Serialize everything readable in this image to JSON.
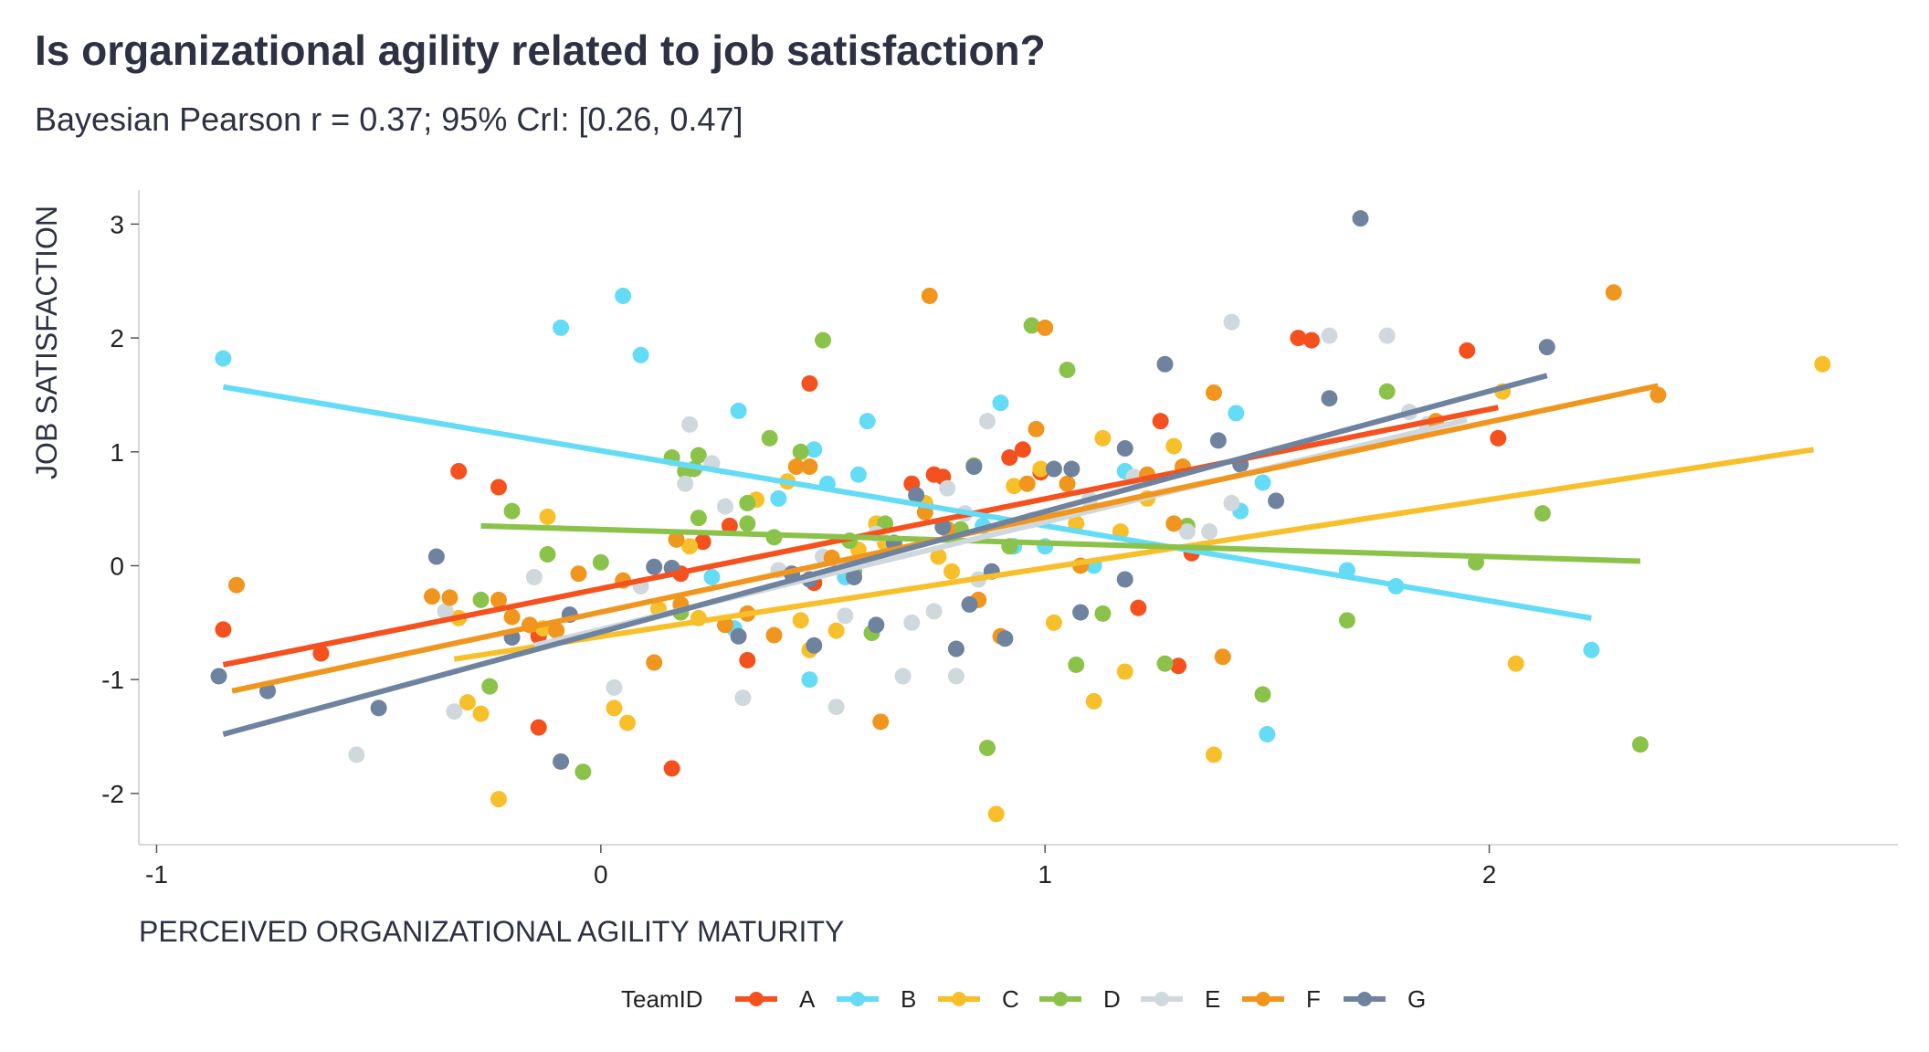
{
  "chart_data": {
    "type": "scatter",
    "title": "Is organizational agility related to job satisfaction?",
    "subtitle": "Bayesian Pearson r = 0.37; 95% CrI: [0.26, 0.47]",
    "xlabel": "PERCEIVED ORGANIZATIONAL AGILITY MATURITY",
    "ylabel": "JOB SATISFACTION",
    "xlim": [
      -1.04,
      2.92
    ],
    "ylim": [
      -2.45,
      3.3
    ],
    "xticks": [
      -1,
      0,
      1,
      2
    ],
    "yticks": [
      -2,
      -1,
      0,
      1,
      2,
      3
    ],
    "grid": false,
    "legend": {
      "title": "TeamID",
      "position": "bottom",
      "entries": [
        "A",
        "B",
        "C",
        "D",
        "E",
        "F",
        "G"
      ]
    },
    "series": [
      {
        "name": "A",
        "color": "#f4511e",
        "fit": [
          [
            -0.85,
            -0.87
          ],
          [
            2.02,
            1.39
          ]
        ],
        "points": [
          [
            -0.85,
            -0.56
          ],
          [
            -0.32,
            0.83
          ],
          [
            -0.63,
            -0.77
          ],
          [
            -0.23,
            0.69
          ],
          [
            -0.14,
            -0.6
          ],
          [
            -0.14,
            -0.62
          ],
          [
            -0.14,
            -1.42
          ],
          [
            0.16,
            -1.78
          ],
          [
            0.18,
            -0.07
          ],
          [
            0.23,
            0.21
          ],
          [
            0.29,
            0.35
          ],
          [
            0.33,
            -0.83
          ],
          [
            0.47,
            1.6
          ],
          [
            0.48,
            -0.15
          ],
          [
            0.7,
            0.72
          ],
          [
            0.75,
            0.8
          ],
          [
            0.77,
            0.78
          ],
          [
            0.92,
            0.95
          ],
          [
            0.95,
            1.02
          ],
          [
            0.99,
            0.82
          ],
          [
            1.21,
            -0.37
          ],
          [
            1.26,
            1.27
          ],
          [
            1.3,
            -0.88
          ],
          [
            1.33,
            0.11
          ],
          [
            1.57,
            2.0
          ],
          [
            1.6,
            1.98
          ],
          [
            1.95,
            1.89
          ],
          [
            2.02,
            1.12
          ]
        ]
      },
      {
        "name": "B",
        "color": "#64dcf5",
        "fit": [
          [
            -0.85,
            1.57
          ],
          [
            2.23,
            -0.46
          ]
        ],
        "points": [
          [
            -0.85,
            1.82
          ],
          [
            -0.09,
            2.09
          ],
          [
            0.05,
            2.37
          ],
          [
            0.09,
            1.85
          ],
          [
            0.25,
            -0.1
          ],
          [
            0.3,
            -0.55
          ],
          [
            0.31,
            1.36
          ],
          [
            0.4,
            0.59
          ],
          [
            0.47,
            -1.0
          ],
          [
            0.48,
            1.02
          ],
          [
            0.51,
            0.72
          ],
          [
            0.55,
            -0.1
          ],
          [
            0.58,
            0.8
          ],
          [
            0.6,
            1.27
          ],
          [
            0.86,
            0.35
          ],
          [
            0.9,
            1.43
          ],
          [
            0.93,
            0.17
          ],
          [
            1.0,
            0.17
          ],
          [
            1.11,
            0.0
          ],
          [
            1.18,
            0.83
          ],
          [
            1.43,
            1.34
          ],
          [
            1.44,
            0.48
          ],
          [
            1.49,
            0.73
          ],
          [
            1.5,
            -1.48
          ],
          [
            1.68,
            -0.04
          ],
          [
            1.79,
            -0.18
          ],
          [
            2.23,
            -0.74
          ]
        ]
      },
      {
        "name": "C",
        "color": "#f7c02b",
        "fit": [
          [
            -0.33,
            -0.82
          ],
          [
            2.73,
            1.02
          ]
        ],
        "points": [
          [
            -0.23,
            -2.05
          ],
          [
            -0.32,
            -0.46
          ],
          [
            -0.3,
            -1.2
          ],
          [
            -0.27,
            -1.3
          ],
          [
            -0.12,
            0.43
          ],
          [
            -0.13,
            -0.55
          ],
          [
            0.03,
            -1.25
          ],
          [
            0.06,
            -1.38
          ],
          [
            0.13,
            -0.38
          ],
          [
            0.2,
            0.17
          ],
          [
            0.22,
            -0.46
          ],
          [
            0.35,
            0.58
          ],
          [
            0.42,
            0.74
          ],
          [
            0.45,
            -0.48
          ],
          [
            0.47,
            -0.74
          ],
          [
            0.53,
            -0.57
          ],
          [
            0.58,
            0.14
          ],
          [
            0.62,
            0.37
          ],
          [
            0.64,
            0.2
          ],
          [
            0.73,
            0.55
          ],
          [
            0.76,
            0.08
          ],
          [
            0.79,
            -0.05
          ],
          [
            0.89,
            -2.18
          ],
          [
            0.93,
            0.7
          ],
          [
            0.99,
            0.85
          ],
          [
            1.02,
            -0.5
          ],
          [
            1.07,
            0.37
          ],
          [
            1.11,
            -1.19
          ],
          [
            1.13,
            1.12
          ],
          [
            1.17,
            0.3
          ],
          [
            1.18,
            -0.93
          ],
          [
            1.23,
            0.59
          ],
          [
            1.29,
            1.05
          ],
          [
            1.38,
            -1.66
          ],
          [
            2.03,
            1.53
          ],
          [
            2.06,
            -0.86
          ],
          [
            2.75,
            1.77
          ]
        ]
      },
      {
        "name": "D",
        "color": "#8bc34a",
        "fit": [
          [
            -0.27,
            0.35
          ],
          [
            2.34,
            0.04
          ]
        ],
        "points": [
          [
            -0.27,
            -0.3
          ],
          [
            -0.25,
            -1.06
          ],
          [
            -0.2,
            0.48
          ],
          [
            -0.12,
            0.1
          ],
          [
            -0.04,
            -1.81
          ],
          [
            0.0,
            0.03
          ],
          [
            0.16,
            0.95
          ],
          [
            0.18,
            -0.41
          ],
          [
            0.19,
            0.83
          ],
          [
            0.21,
            0.85
          ],
          [
            0.22,
            0.42
          ],
          [
            0.22,
            0.97
          ],
          [
            0.33,
            0.55
          ],
          [
            0.33,
            0.37
          ],
          [
            0.38,
            1.12
          ],
          [
            0.39,
            0.25
          ],
          [
            0.45,
            1.0
          ],
          [
            0.5,
            1.98
          ],
          [
            0.56,
            0.22
          ],
          [
            0.57,
            -0.05
          ],
          [
            0.61,
            -0.59
          ],
          [
            0.64,
            0.37
          ],
          [
            0.81,
            0.32
          ],
          [
            0.84,
            0.88
          ],
          [
            0.87,
            -1.6
          ],
          [
            0.92,
            0.17
          ],
          [
            0.97,
            2.11
          ],
          [
            1.05,
            1.72
          ],
          [
            1.07,
            -0.87
          ],
          [
            1.13,
            -0.42
          ],
          [
            1.27,
            -0.86
          ],
          [
            1.32,
            0.35
          ],
          [
            1.49,
            -1.13
          ],
          [
            1.68,
            -0.48
          ],
          [
            1.77,
            1.53
          ],
          [
            1.97,
            0.03
          ],
          [
            2.12,
            0.46
          ],
          [
            2.34,
            -1.57
          ]
        ]
      },
      {
        "name": "E",
        "color": "#cfd8dc",
        "fit": [
          [
            -0.15,
            -0.7
          ],
          [
            1.95,
            1.28
          ]
        ],
        "points": [
          [
            -0.55,
            -1.66
          ],
          [
            -0.35,
            -0.4
          ],
          [
            -0.33,
            -1.28
          ],
          [
            -0.15,
            -0.1
          ],
          [
            0.03,
            -1.07
          ],
          [
            0.09,
            -0.18
          ],
          [
            0.19,
            0.72
          ],
          [
            0.2,
            1.24
          ],
          [
            0.25,
            0.9
          ],
          [
            0.28,
            0.52
          ],
          [
            0.32,
            -1.16
          ],
          [
            0.4,
            -0.04
          ],
          [
            0.5,
            0.08
          ],
          [
            0.53,
            -1.24
          ],
          [
            0.55,
            -0.44
          ],
          [
            0.62,
            0.28
          ],
          [
            0.68,
            -0.97
          ],
          [
            0.7,
            -0.5
          ],
          [
            0.75,
            -0.4
          ],
          [
            0.78,
            0.68
          ],
          [
            0.8,
            -0.97
          ],
          [
            0.82,
            0.46
          ],
          [
            0.85,
            -0.12
          ],
          [
            0.87,
            1.27
          ],
          [
            0.97,
            0.4
          ],
          [
            1.1,
            0.58
          ],
          [
            1.2,
            0.78
          ],
          [
            1.32,
            0.3
          ],
          [
            1.37,
            0.3
          ],
          [
            1.42,
            0.55
          ],
          [
            1.42,
            2.14
          ],
          [
            1.64,
            2.02
          ],
          [
            1.77,
            2.02
          ],
          [
            1.82,
            1.35
          ],
          [
            1.86,
            1.24
          ]
        ]
      },
      {
        "name": "F",
        "color": "#f0961e",
        "fit": [
          [
            -0.83,
            -1.1
          ],
          [
            2.38,
            1.58
          ]
        ],
        "points": [
          [
            -0.82,
            -0.17
          ],
          [
            -0.38,
            -0.27
          ],
          [
            -0.34,
            -0.28
          ],
          [
            -0.23,
            -0.3
          ],
          [
            -0.2,
            -0.45
          ],
          [
            -0.16,
            -0.52
          ],
          [
            -0.1,
            -0.57
          ],
          [
            -0.05,
            -0.07
          ],
          [
            0.05,
            -0.13
          ],
          [
            0.12,
            -0.85
          ],
          [
            0.17,
            0.23
          ],
          [
            0.18,
            -0.34
          ],
          [
            0.28,
            -0.52
          ],
          [
            0.33,
            -0.42
          ],
          [
            0.39,
            -0.61
          ],
          [
            0.44,
            0.87
          ],
          [
            0.47,
            0.87
          ],
          [
            0.52,
            0.07
          ],
          [
            0.63,
            -1.37
          ],
          [
            0.73,
            0.47
          ],
          [
            0.74,
            2.37
          ],
          [
            0.78,
            0.32
          ],
          [
            0.85,
            -0.3
          ],
          [
            0.9,
            -0.62
          ],
          [
            0.96,
            0.72
          ],
          [
            0.98,
            1.2
          ],
          [
            1.0,
            2.09
          ],
          [
            1.05,
            0.72
          ],
          [
            1.08,
            0.0
          ],
          [
            1.23,
            0.8
          ],
          [
            1.29,
            0.37
          ],
          [
            1.31,
            0.87
          ],
          [
            1.38,
            1.52
          ],
          [
            1.4,
            -0.8
          ],
          [
            1.88,
            1.27
          ],
          [
            2.28,
            2.4
          ],
          [
            2.38,
            1.5
          ]
        ]
      },
      {
        "name": "G",
        "color": "#6f829e",
        "fit": [
          [
            -0.85,
            -1.48
          ],
          [
            2.13,
            1.67
          ]
        ],
        "points": [
          [
            -0.86,
            -0.97
          ],
          [
            -0.75,
            -1.1
          ],
          [
            -0.5,
            -1.25
          ],
          [
            -0.37,
            0.08
          ],
          [
            -0.2,
            -0.63
          ],
          [
            -0.09,
            -1.72
          ],
          [
            -0.07,
            -0.43
          ],
          [
            0.12,
            -0.01
          ],
          [
            0.16,
            -0.02
          ],
          [
            0.31,
            -0.62
          ],
          [
            0.43,
            -0.07
          ],
          [
            0.47,
            -0.12
          ],
          [
            0.48,
            -0.7
          ],
          [
            0.57,
            -0.1
          ],
          [
            0.62,
            -0.52
          ],
          [
            0.66,
            0.2
          ],
          [
            0.71,
            0.62
          ],
          [
            0.77,
            0.34
          ],
          [
            0.8,
            -0.73
          ],
          [
            0.83,
            -0.34
          ],
          [
            0.84,
            0.87
          ],
          [
            0.88,
            -0.05
          ],
          [
            0.91,
            -0.64
          ],
          [
            1.02,
            0.85
          ],
          [
            1.06,
            0.85
          ],
          [
            1.08,
            -0.41
          ],
          [
            1.18,
            -0.12
          ],
          [
            1.18,
            1.03
          ],
          [
            1.27,
            1.77
          ],
          [
            1.39,
            1.1
          ],
          [
            1.44,
            0.89
          ],
          [
            1.52,
            0.57
          ],
          [
            1.64,
            1.47
          ],
          [
            1.71,
            3.05
          ],
          [
            2.13,
            1.92
          ]
        ]
      }
    ]
  }
}
